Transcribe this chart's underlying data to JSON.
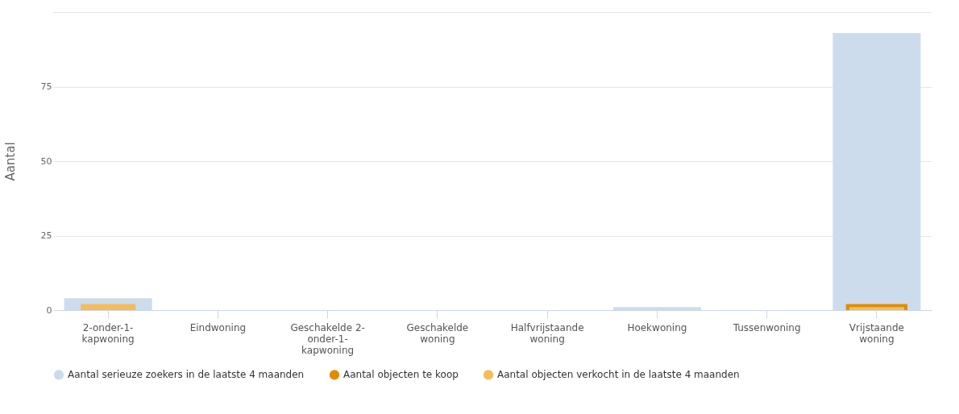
{
  "chart_data": {
    "type": "bar",
    "ylabel": "Aantal",
    "categories": [
      "2-onder-1-kapwoning",
      "Eindwoning",
      "Geschakelde 2-onder-1-kapwoning",
      "Geschakelde woning",
      "Halfvrijstaande woning",
      "Hoekwoning",
      "Tussenwoning",
      "Vrijstaande woning"
    ],
    "series": [
      {
        "name": "Aantal serieuze zoekers in de laatste 4 maanden",
        "color": "#cddcec",
        "values": [
          4,
          0,
          0,
          0,
          0,
          1,
          0,
          93
        ]
      },
      {
        "name": "Aantal objecten te koop",
        "color": "#e08c00",
        "values": [
          0,
          0,
          0,
          0,
          0,
          0,
          0,
          2
        ]
      },
      {
        "name": "Aantal objecten verkocht in de laatste 4 maanden",
        "color": "#f5bc5a",
        "values": [
          2,
          0,
          0,
          0,
          0,
          0,
          0,
          1
        ]
      }
    ],
    "ylim": [
      0,
      100
    ],
    "yticks": [
      0,
      25,
      50,
      75,
      {
        "value": 100,
        "label": null
      }
    ],
    "grid": "y",
    "legend": "bottom"
  }
}
